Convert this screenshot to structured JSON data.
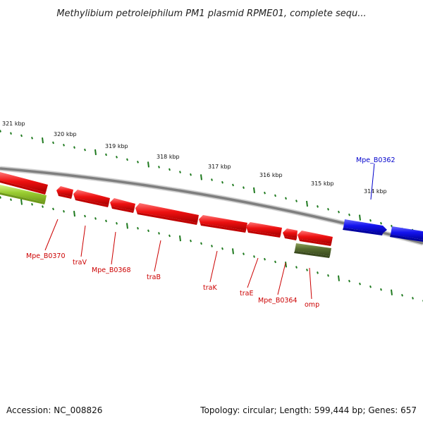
{
  "title": "Methylibium petroleiphilum PM1 plasmid RPME01, complete sequ...",
  "footer": {
    "accession": "Accession: NC_008826",
    "summary": "Topology: circular; Length: 599,444 bp; Genes: 657"
  },
  "colors": {
    "background": "#ffffff",
    "backbone": "#8a8a8a",
    "tick": "#1f7a1f",
    "gene_red": "#ee1111",
    "gene_blue": "#1111ee",
    "gene_lightgreen": "#9acd32",
    "gene_darkgreen": "#556b2f",
    "label_red": "#cc0000",
    "label_blue": "#0000cc"
  },
  "scale_labels": [
    "321 kbp",
    "320 kbp",
    "319 kbp",
    "318 kbp",
    "317 kbp",
    "316 kbp",
    "315 kbp",
    "314 kbp"
  ],
  "genes_upper": [
    {
      "label": "Mpe_B0362",
      "color": "blue"
    }
  ],
  "genes_lower": [
    {
      "label": "Mpe_B0370",
      "color": "red"
    },
    {
      "label": "traV",
      "color": "red"
    },
    {
      "label": "Mpe_B0368",
      "color": "red"
    },
    {
      "label": "traB",
      "color": "red"
    },
    {
      "label": "traK",
      "color": "red"
    },
    {
      "label": "traE",
      "color": "red"
    },
    {
      "label": "Mpe_B0364",
      "color": "red"
    },
    {
      "label": "omp",
      "color": "red"
    }
  ]
}
